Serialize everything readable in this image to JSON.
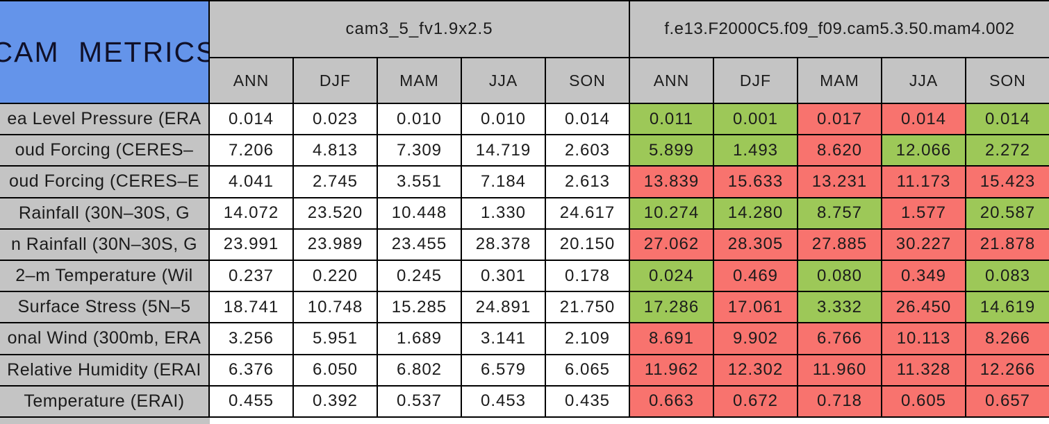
{
  "colors": {
    "title_bg": "#6494EA",
    "title_text": "#101028",
    "header_bg": "#C4C4C4",
    "label_bg": "#C4C4C4",
    "cell_bg": "#FFFFFF",
    "better_bg": "#9DC858",
    "worse_bg": "#F8736E",
    "border": "#000000",
    "text": "#1B1B1B"
  },
  "chart_data": {
    "type": "table",
    "title": "CAM METRICS",
    "column_groups": [
      "cam3_5_fv1.9x2.5",
      "f.e13.F2000C5.f09_f09.cam5.3.50.mam4.002"
    ],
    "seasons": [
      "ANN",
      "DJF",
      "MAM",
      "JJA",
      "SON"
    ],
    "status_color_legend": {
      "better": "green",
      "worse": "red"
    },
    "rows": [
      {
        "label": "ea Level Pressure (ERA",
        "model1": [
          "0.014",
          "0.023",
          "0.010",
          "0.010",
          "0.014"
        ],
        "model2": [
          "0.011",
          "0.001",
          "0.017",
          "0.014",
          "0.014"
        ],
        "model2_status": [
          "better",
          "better",
          "worse",
          "worse",
          "better"
        ]
      },
      {
        "label": "oud Forcing (CERES–",
        "model1": [
          "7.206",
          "4.813",
          "7.309",
          "14.719",
          "2.603"
        ],
        "model2": [
          "5.899",
          "1.493",
          "8.620",
          "12.066",
          "2.272"
        ],
        "model2_status": [
          "better",
          "better",
          "worse",
          "better",
          "better"
        ]
      },
      {
        "label": "oud Forcing (CERES–E",
        "model1": [
          "4.041",
          "2.745",
          "3.551",
          "7.184",
          "2.613"
        ],
        "model2": [
          "13.839",
          "15.633",
          "13.231",
          "11.173",
          "15.423"
        ],
        "model2_status": [
          "worse",
          "worse",
          "worse",
          "worse",
          "worse"
        ]
      },
      {
        "label": "Rainfall (30N–30S, G",
        "model1": [
          "14.072",
          "23.520",
          "10.448",
          "1.330",
          "24.617"
        ],
        "model2": [
          "10.274",
          "14.280",
          "8.757",
          "1.577",
          "20.587"
        ],
        "model2_status": [
          "better",
          "better",
          "better",
          "worse",
          "better"
        ]
      },
      {
        "label": "n Rainfall (30N–30S, G",
        "model1": [
          "23.991",
          "23.989",
          "23.455",
          "28.378",
          "20.150"
        ],
        "model2": [
          "27.062",
          "28.305",
          "27.885",
          "30.227",
          "21.878"
        ],
        "model2_status": [
          "worse",
          "worse",
          "worse",
          "worse",
          "worse"
        ]
      },
      {
        "label": "2–m Temperature (Wil",
        "model1": [
          "0.237",
          "0.220",
          "0.245",
          "0.301",
          "0.178"
        ],
        "model2": [
          "0.024",
          "0.469",
          "0.080",
          "0.349",
          "0.083"
        ],
        "model2_status": [
          "better",
          "worse",
          "better",
          "worse",
          "better"
        ]
      },
      {
        "label": "Surface Stress (5N–5",
        "model1": [
          "18.741",
          "10.748",
          "15.285",
          "24.891",
          "21.750"
        ],
        "model2": [
          "17.286",
          "17.061",
          "3.332",
          "26.450",
          "14.619"
        ],
        "model2_status": [
          "better",
          "worse",
          "better",
          "worse",
          "better"
        ]
      },
      {
        "label": "onal Wind (300mb, ERA",
        "model1": [
          "3.256",
          "5.951",
          "1.689",
          "3.141",
          "2.109"
        ],
        "model2": [
          "8.691",
          "9.902",
          "6.766",
          "10.113",
          "8.266"
        ],
        "model2_status": [
          "worse",
          "worse",
          "worse",
          "worse",
          "worse"
        ]
      },
      {
        "label": "Relative Humidity (ERAI",
        "model1": [
          "6.376",
          "6.050",
          "6.802",
          "6.579",
          "6.065"
        ],
        "model2": [
          "11.962",
          "12.302",
          "11.960",
          "11.328",
          "12.266"
        ],
        "model2_status": [
          "worse",
          "worse",
          "worse",
          "worse",
          "worse"
        ]
      },
      {
        "label": "Temperature (ERAI)",
        "model1": [
          "0.455",
          "0.392",
          "0.537",
          "0.453",
          "0.435"
        ],
        "model2": [
          "0.663",
          "0.672",
          "0.718",
          "0.605",
          "0.657"
        ],
        "model2_status": [
          "worse",
          "worse",
          "worse",
          "worse",
          "worse"
        ]
      }
    ]
  }
}
